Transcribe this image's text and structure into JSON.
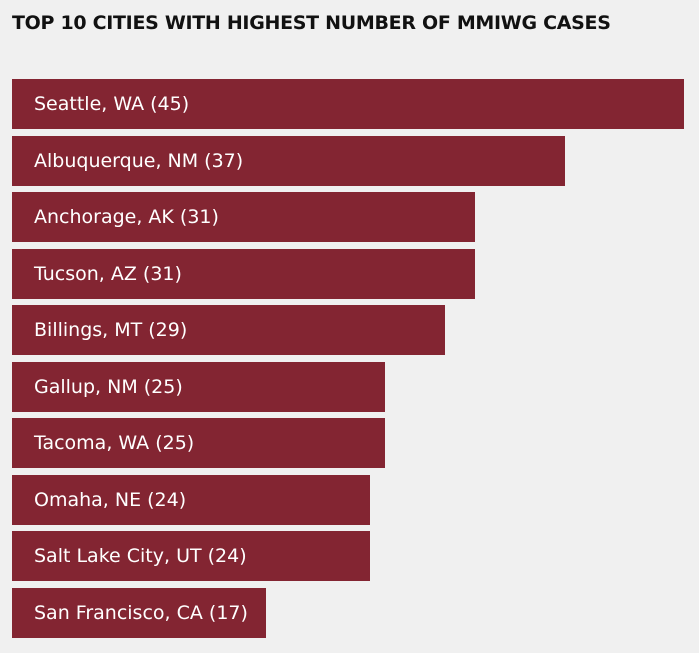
{
  "chart_data": {
    "type": "bar",
    "orientation": "horizontal",
    "title": "TOP 10 CITIES WITH HIGHEST NUMBER OF MMIWG CASES",
    "categories": [
      "Seattle, WA",
      "Albuquerque, NM",
      "Anchorage, AK",
      "Tucson, AZ",
      "Billings, MT",
      "Gallup, NM",
      "Tacoma, WA",
      "Omaha, NE",
      "Salt Lake City, UT",
      "San Francisco, CA"
    ],
    "values": [
      45,
      37,
      31,
      31,
      29,
      25,
      25,
      24,
      24,
      17
    ],
    "labels": [
      "Seattle, WA (45)",
      "Albuquerque, NM (37)",
      "Anchorage, AK (31)",
      "Tucson, AZ (31)",
      "Billings, MT (29)",
      "Gallup, NM (25)",
      "Tacoma, WA (25)",
      "Omaha, NE (24)",
      "Salt Lake City, UT (24)",
      "San Francisco, CA (17)"
    ],
    "xlim": [
      0,
      45
    ],
    "grid": false,
    "bar_color": "#832532",
    "background_color": "#f0f0f0"
  }
}
